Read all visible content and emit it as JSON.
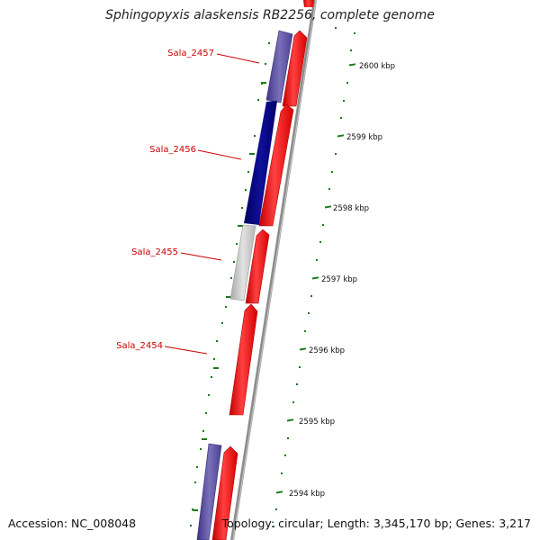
{
  "title": "Sphingopyxis alaskensis RB2256, complete genome",
  "footer": {
    "accession": "Accession: NC_008048",
    "summary": "Topology: circular; Length: 3,345,170 bp; Genes: 3,217"
  },
  "scale_labels": [
    "2600 kbp",
    "2599 kbp",
    "2598 kbp",
    "2597 kbp",
    "2596 kbp",
    "2595 kbp",
    "2594 kbp"
  ],
  "gene_labels": [
    "Sala_2457",
    "Sala_2456",
    "Sala_2455",
    "Sala_2454"
  ],
  "colors": {
    "gene_label": "#cc0000",
    "forward_arrow": "#ff0000",
    "reverse_light": "#5b4f9e",
    "reverse_dark": "#00007f",
    "reverse_gray": "#c4c4c4",
    "backbone": "#8c8c8c",
    "tick": "#1a7a1a"
  }
}
